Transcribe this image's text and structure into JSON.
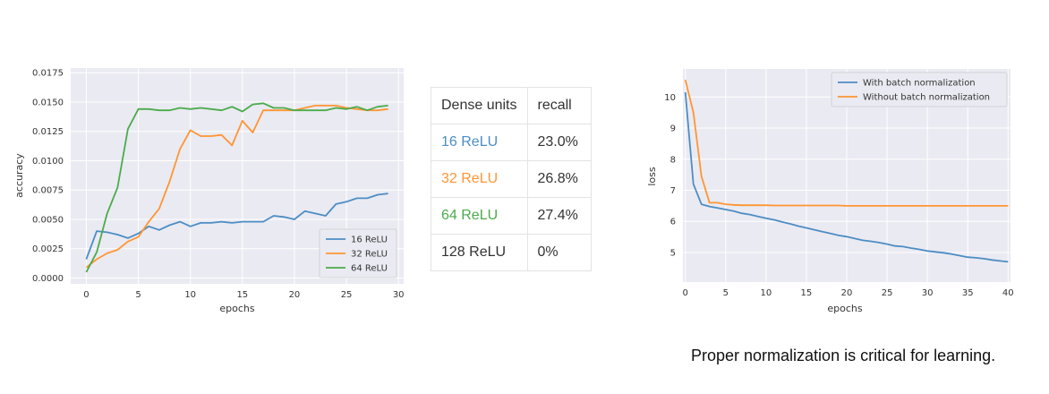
{
  "chart_data": [
    {
      "type": "line",
      "title": "",
      "xlabel": "epochs",
      "ylabel": "accuracy",
      "xlim": [
        -1.5,
        30.5
      ],
      "ylim": [
        -0.0005,
        0.0179
      ],
      "xticks": [
        0,
        5,
        10,
        15,
        20,
        25,
        30
      ],
      "yticks": [
        "0.0000",
        "0.0025",
        "0.0050",
        "0.0075",
        "0.0100",
        "0.0125",
        "0.0150",
        "0.0175"
      ],
      "grid": true,
      "legend_position": "bottom-right",
      "x": [
        0,
        1,
        2,
        3,
        4,
        5,
        6,
        7,
        8,
        9,
        10,
        11,
        12,
        13,
        14,
        15,
        16,
        17,
        18,
        19,
        20,
        21,
        22,
        23,
        24,
        25,
        26,
        27,
        28,
        29
      ],
      "series": [
        {
          "name": "16 ReLU",
          "color": "#4c8dc4",
          "values": [
            0.0016,
            0.004,
            0.0039,
            0.0037,
            0.0034,
            0.0038,
            0.0044,
            0.0041,
            0.0045,
            0.0048,
            0.0044,
            0.0047,
            0.0047,
            0.0048,
            0.0047,
            0.0048,
            0.0048,
            0.0048,
            0.0053,
            0.0052,
            0.005,
            0.0057,
            0.0055,
            0.0053,
            0.0063,
            0.0065,
            0.0068,
            0.0068,
            0.0071,
            0.0072
          ]
        },
        {
          "name": "32 ReLU",
          "color": "#ff9533",
          "values": [
            0.0009,
            0.0016,
            0.0021,
            0.0024,
            0.0031,
            0.0035,
            0.0048,
            0.0059,
            0.0082,
            0.011,
            0.0126,
            0.0121,
            0.0121,
            0.0122,
            0.0113,
            0.0134,
            0.0124,
            0.0143,
            0.0143,
            0.0143,
            0.0143,
            0.0145,
            0.0147,
            0.0147,
            0.0147,
            0.0145,
            0.0144,
            0.0143,
            0.0143,
            0.0144
          ]
        },
        {
          "name": "64 ReLU",
          "color": "#4bab4b",
          "values": [
            0.0005,
            0.0022,
            0.0055,
            0.0077,
            0.0127,
            0.0144,
            0.0144,
            0.0143,
            0.0143,
            0.0145,
            0.0144,
            0.0145,
            0.0144,
            0.0143,
            0.0146,
            0.0142,
            0.0148,
            0.0149,
            0.0145,
            0.0145,
            0.0143,
            0.0143,
            0.0143,
            0.0143,
            0.0145,
            0.0144,
            0.0146,
            0.0143,
            0.0146,
            0.0147
          ]
        }
      ]
    },
    {
      "type": "table",
      "headers": [
        "Dense units",
        "recall"
      ],
      "rows": [
        {
          "label": "16 ReLU",
          "value": "23.0%",
          "color": "#4c8dc4"
        },
        {
          "label": "32 ReLU",
          "value": "26.8%",
          "color": "#ff9533"
        },
        {
          "label": "64 ReLU",
          "value": "27.4%",
          "color": "#4bab4b"
        },
        {
          "label": "128 ReLU",
          "value": "0%",
          "color": "#333333"
        }
      ]
    },
    {
      "type": "line",
      "title": "",
      "xlabel": "epochs",
      "ylabel": "loss",
      "xlim": [
        -0.3,
        40.3
      ],
      "ylim": [
        4.05,
        10.9
      ],
      "xticks": [
        0,
        5,
        10,
        15,
        20,
        25,
        30,
        35,
        40
      ],
      "yticks": [
        5,
        6,
        7,
        8,
        9,
        10
      ],
      "grid": true,
      "legend_position": "top-right",
      "x": [
        0,
        1,
        2,
        3,
        4,
        5,
        6,
        7,
        8,
        9,
        10,
        11,
        12,
        13,
        14,
        15,
        16,
        17,
        18,
        19,
        20,
        21,
        22,
        23,
        24,
        25,
        26,
        27,
        28,
        29,
        30,
        31,
        32,
        33,
        34,
        35,
        36,
        37,
        38,
        39,
        40
      ],
      "series": [
        {
          "name": "With batch normalization",
          "color": "#4c8dc4",
          "values": [
            10.15,
            7.2,
            6.55,
            6.48,
            6.43,
            6.38,
            6.33,
            6.26,
            6.22,
            6.16,
            6.1,
            6.05,
            5.98,
            5.92,
            5.85,
            5.79,
            5.73,
            5.67,
            5.61,
            5.55,
            5.51,
            5.45,
            5.39,
            5.36,
            5.32,
            5.27,
            5.21,
            5.19,
            5.14,
            5.1,
            5.05,
            5.02,
            4.99,
            4.95,
            4.9,
            4.85,
            4.83,
            4.8,
            4.76,
            4.73,
            4.7
          ]
        },
        {
          "name": "Without batch normalization",
          "color": "#ff9533",
          "values": [
            10.55,
            9.5,
            7.45,
            6.6,
            6.6,
            6.55,
            6.53,
            6.52,
            6.52,
            6.52,
            6.52,
            6.51,
            6.51,
            6.51,
            6.51,
            6.51,
            6.51,
            6.51,
            6.51,
            6.51,
            6.5,
            6.5,
            6.5,
            6.5,
            6.5,
            6.5,
            6.5,
            6.5,
            6.5,
            6.5,
            6.5,
            6.5,
            6.5,
            6.5,
            6.5,
            6.5,
            6.5,
            6.5,
            6.5,
            6.5,
            6.5
          ]
        }
      ]
    }
  ],
  "caption": "Proper normalization is critical for learning."
}
